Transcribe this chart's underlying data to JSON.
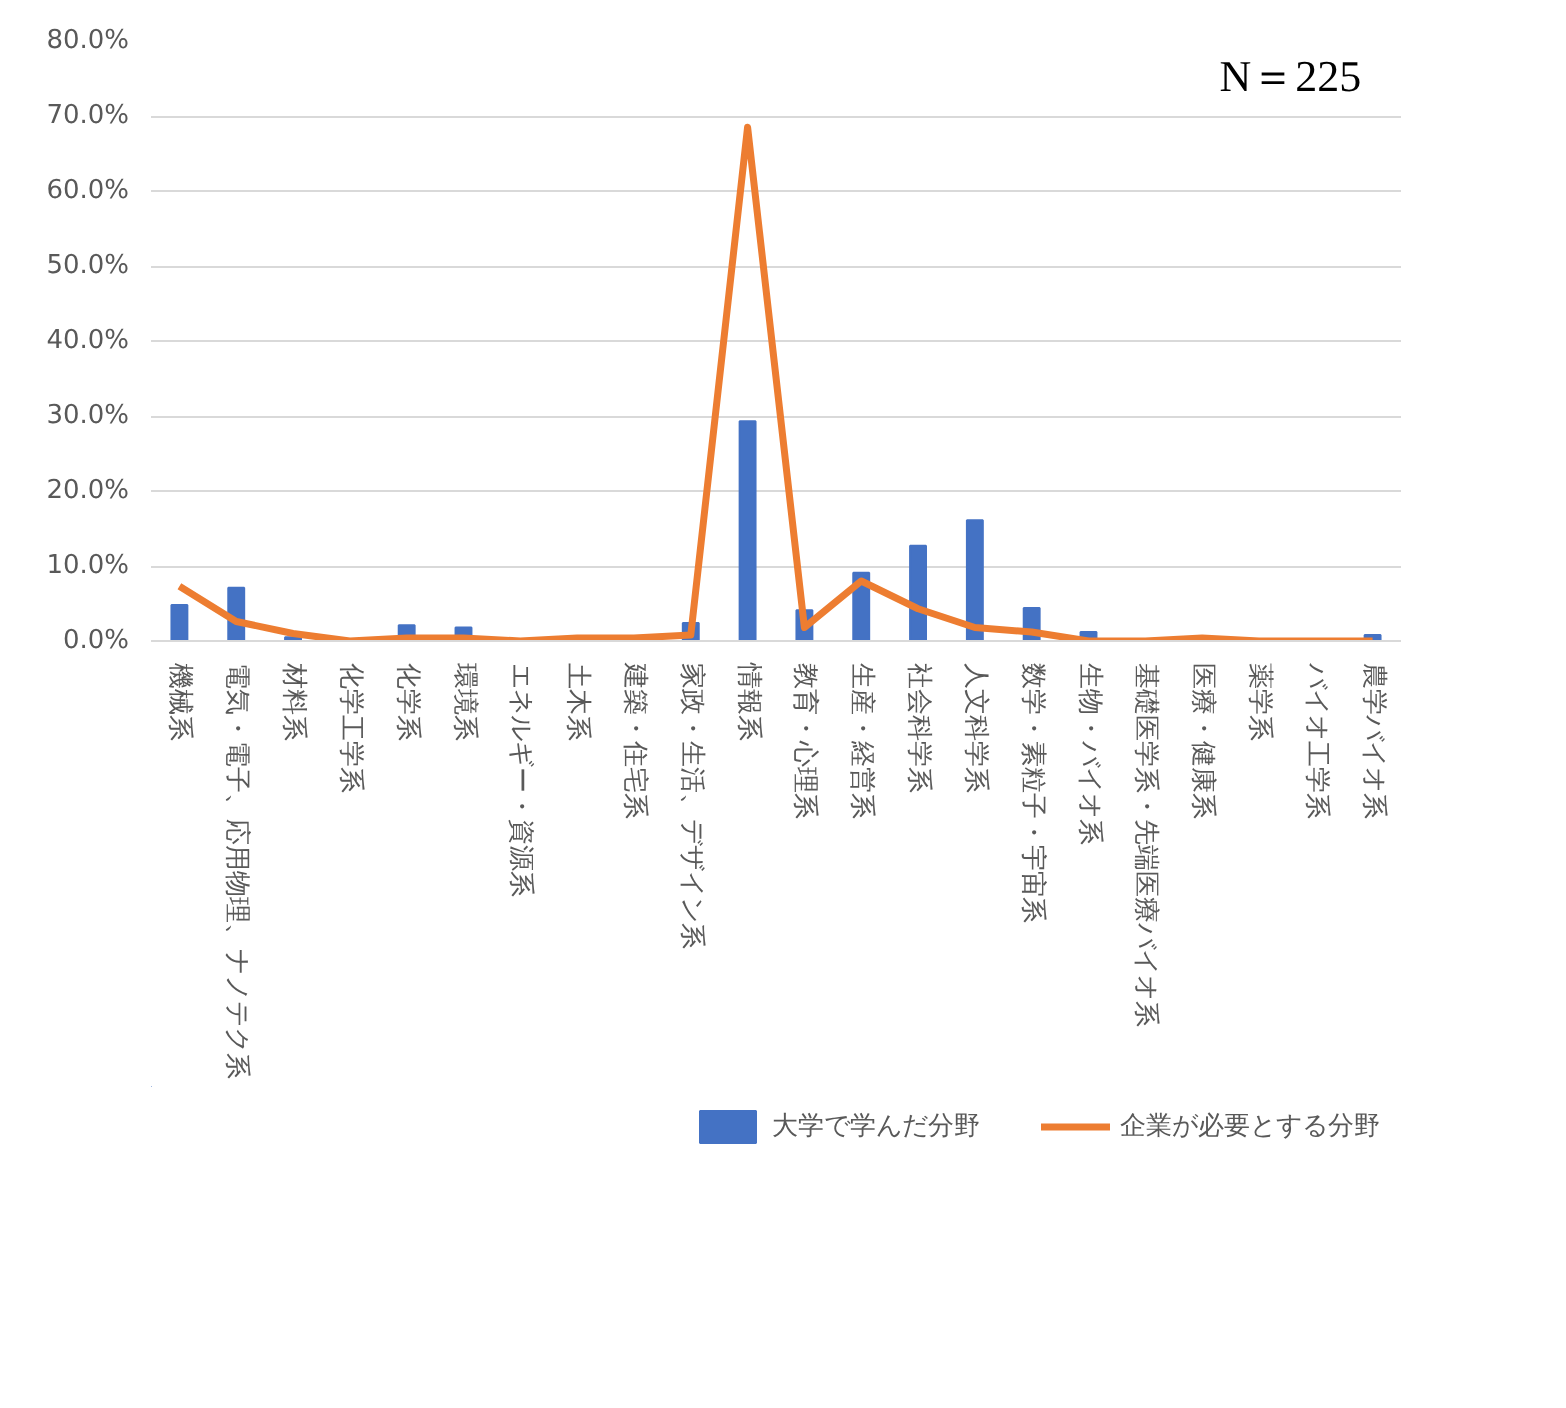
{
  "chart_data": {
    "type": "bar",
    "categories": [
      "機械系",
      "電気・電子、応用物理、ナノテク系",
      "材料系",
      "化学工学系",
      "化学系",
      "環境系",
      "エネルギー・資源系",
      "土木系",
      "建築・住宅系",
      "家政・生活、デザイン系",
      "情報系",
      "教育・心理系",
      "生産・経営系",
      "社会科学系",
      "人文科学系",
      "数学・素粒子・宇宙系",
      "生物・バイオ系",
      "基礎医学系・先端医療バイオ系",
      "医療・健康系",
      "薬学系",
      "バイオ工学系",
      "農学バイオ系"
    ],
    "series": [
      {
        "name": "大学で学んだ分野",
        "color": "#4472c4",
        "values": [
          4.8,
          7.1,
          0.5,
          0,
          2.1,
          1.8,
          0,
          0,
          0,
          2.4,
          29.3,
          4.1,
          9.1,
          12.7,
          16.1,
          4.4,
          1.2,
          0,
          0,
          0,
          0,
          0.8
        ]
      },
      {
        "name": "企業が必要とする分野",
        "type": "line",
        "color": "#ed7d31",
        "values": [
          7.3,
          2.6,
          1.0,
          0,
          0.4,
          0.4,
          0,
          0.4,
          0.4,
          0.8,
          68.5,
          1.8,
          8.0,
          4.3,
          1.8,
          1.2,
          0,
          0,
          0.4,
          0,
          0,
          0
        ]
      }
    ],
    "ylim": [
      0,
      80
    ],
    "yticks": [
      {
        "value": 0,
        "label": "0.0%"
      },
      {
        "value": 10,
        "label": "10.0%"
      },
      {
        "value": 20,
        "label": "20.0%"
      },
      {
        "value": 30,
        "label": "30.0%"
      },
      {
        "value": 40,
        "label": "40.0%"
      },
      {
        "value": 50,
        "label": "50.0%"
      },
      {
        "value": 60,
        "label": "60.0%"
      },
      {
        "value": 70,
        "label": "70.0%"
      },
      {
        "value": 80,
        "label": "80.0%"
      }
    ],
    "grid": "y",
    "legend": "bottom",
    "line_style": "solid",
    "marker": "none",
    "annotations": [
      "N＝225"
    ]
  }
}
